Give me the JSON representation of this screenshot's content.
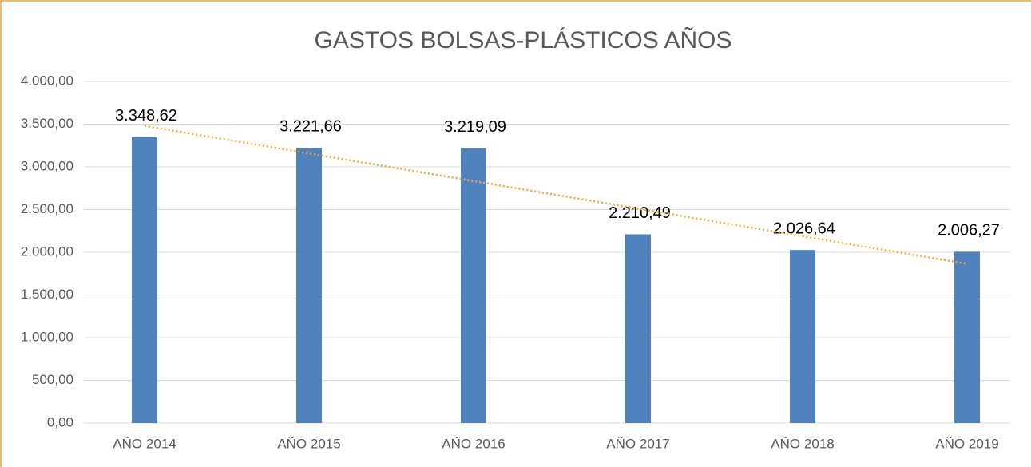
{
  "chart_data": {
    "type": "bar",
    "title": "GASTOS BOLSAS-PLÁSTICOS AÑOS",
    "categories": [
      "AÑO 2014",
      "AÑO 2015",
      "AÑO 2016",
      "AÑO 2017",
      "AÑO 2018",
      "AÑO 2019"
    ],
    "values": [
      3348.62,
      3221.66,
      3219.09,
      2210.49,
      2026.64,
      2006.27
    ],
    "value_labels": [
      "3.348,62",
      "3.221,66",
      "3.219,09",
      "2.210,49",
      "2.026,64",
      "2.006,27"
    ],
    "color": "#4f81bd",
    "ylim": [
      0,
      4000
    ],
    "yticks": [
      {
        "value": 0,
        "label": "0,00"
      },
      {
        "value": 500,
        "label": "500,00"
      },
      {
        "value": 1000,
        "label": "1.000,00"
      },
      {
        "value": 1500,
        "label": "1.500,00"
      },
      {
        "value": 2000,
        "label": "2.000,00"
      },
      {
        "value": 2500,
        "label": "2.500,00"
      },
      {
        "value": 3000,
        "label": "3.000,00"
      },
      {
        "value": 3500,
        "label": "3.500,00"
      },
      {
        "value": 4000,
        "label": "4.000,00"
      }
    ],
    "grid": true,
    "trendline": {
      "type": "linear",
      "color": "#f0a830"
    }
  }
}
